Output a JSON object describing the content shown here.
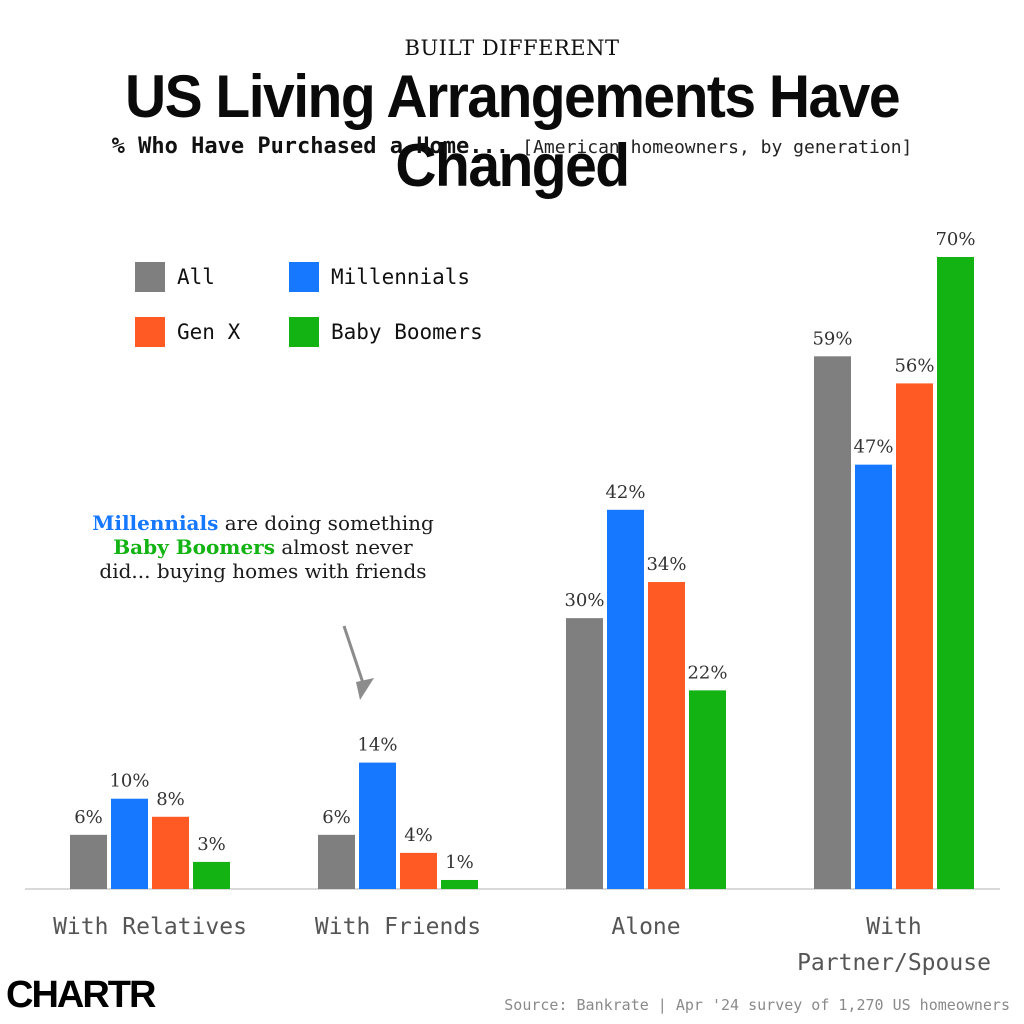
{
  "header": {
    "kicker": "BUILT DIFFERENT",
    "title": "US Living Arrangements Have Changed",
    "subtitle_bold": "% Who Have Purchased a Home...",
    "subtitle_light": "[American homeowners, by generation]"
  },
  "annotation": {
    "part1": "Millennials",
    "part2": " are doing something ",
    "part3": "Baby Boomers",
    "part4": " almost never did... buying homes with friends"
  },
  "footer": {
    "logo_text": "CHARTR",
    "source": "Source: Bankrate | Apr '24 survey of 1,270 US homeowners"
  },
  "chart_data": {
    "type": "bar",
    "categories": [
      "With Relatives",
      "With Friends",
      "Alone",
      "With\nPartner/Spouse"
    ],
    "series": [
      {
        "name": "All",
        "color": "#7f7f7f",
        "values": [
          6,
          6,
          30,
          59
        ]
      },
      {
        "name": "Millennials",
        "color": "#1677ff",
        "values": [
          10,
          14,
          42,
          47
        ]
      },
      {
        "name": "Gen X",
        "color": "#ff5a24",
        "values": [
          8,
          4,
          34,
          56
        ]
      },
      {
        "name": "Baby Boomers",
        "color": "#12b312",
        "values": [
          3,
          1,
          22,
          70
        ]
      }
    ],
    "value_suffix": "%",
    "ylim": [
      0,
      70
    ],
    "legend_position": "top-left",
    "grid": false
  }
}
